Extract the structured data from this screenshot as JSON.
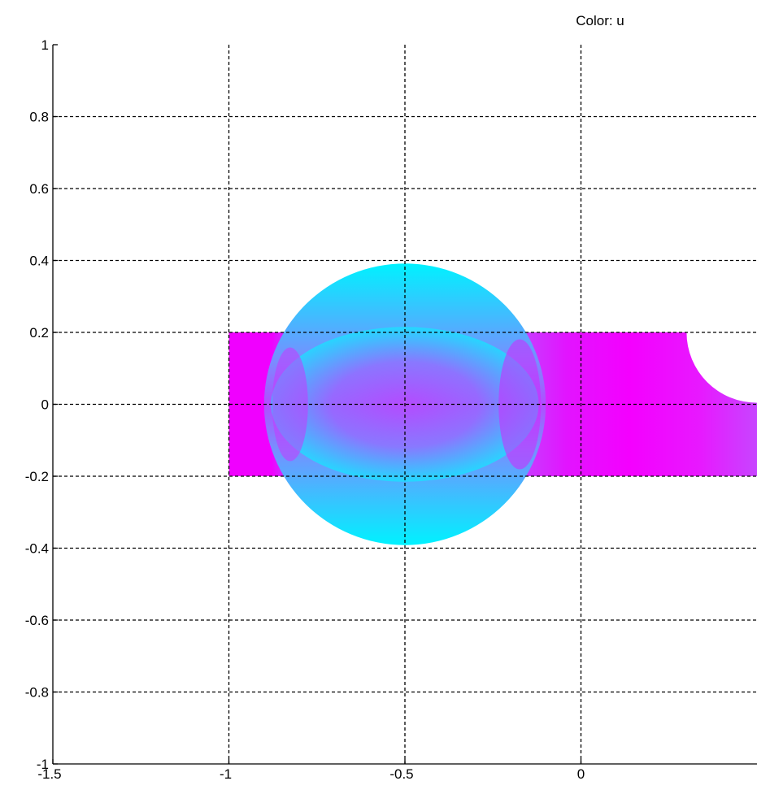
{
  "chart_data": {
    "type": "heatmap",
    "title": "Color: u",
    "xlim": [
      -1.5,
      0.5
    ],
    "ylim": [
      -1,
      1
    ],
    "x_ticks": [
      "-1.5",
      "-1",
      "-0.5",
      "0"
    ],
    "y_ticks": [
      "1",
      "0.8",
      "0.6",
      "0.4",
      "0.2",
      "0",
      "-0.2",
      "-0.4",
      "-0.6",
      "-0.8",
      "-1"
    ],
    "grid": true,
    "colormap": "cool",
    "colors": {
      "low": "#00ffff",
      "high": "#ff00ff"
    },
    "domain": {
      "left_channel": {
        "x": [
          -1,
          -0.84
        ],
        "y": [
          -0.2,
          0.2
        ]
      },
      "circle": {
        "center": [
          -0.5,
          0
        ],
        "radius": 0.4
      },
      "right_channel": {
        "x": [
          -0.16,
          0.5
        ],
        "y": [
          -0.2,
          0.2
        ]
      },
      "cutout": {
        "center": [
          0.5,
          0.2
        ],
        "radius": 0.2
      }
    }
  }
}
